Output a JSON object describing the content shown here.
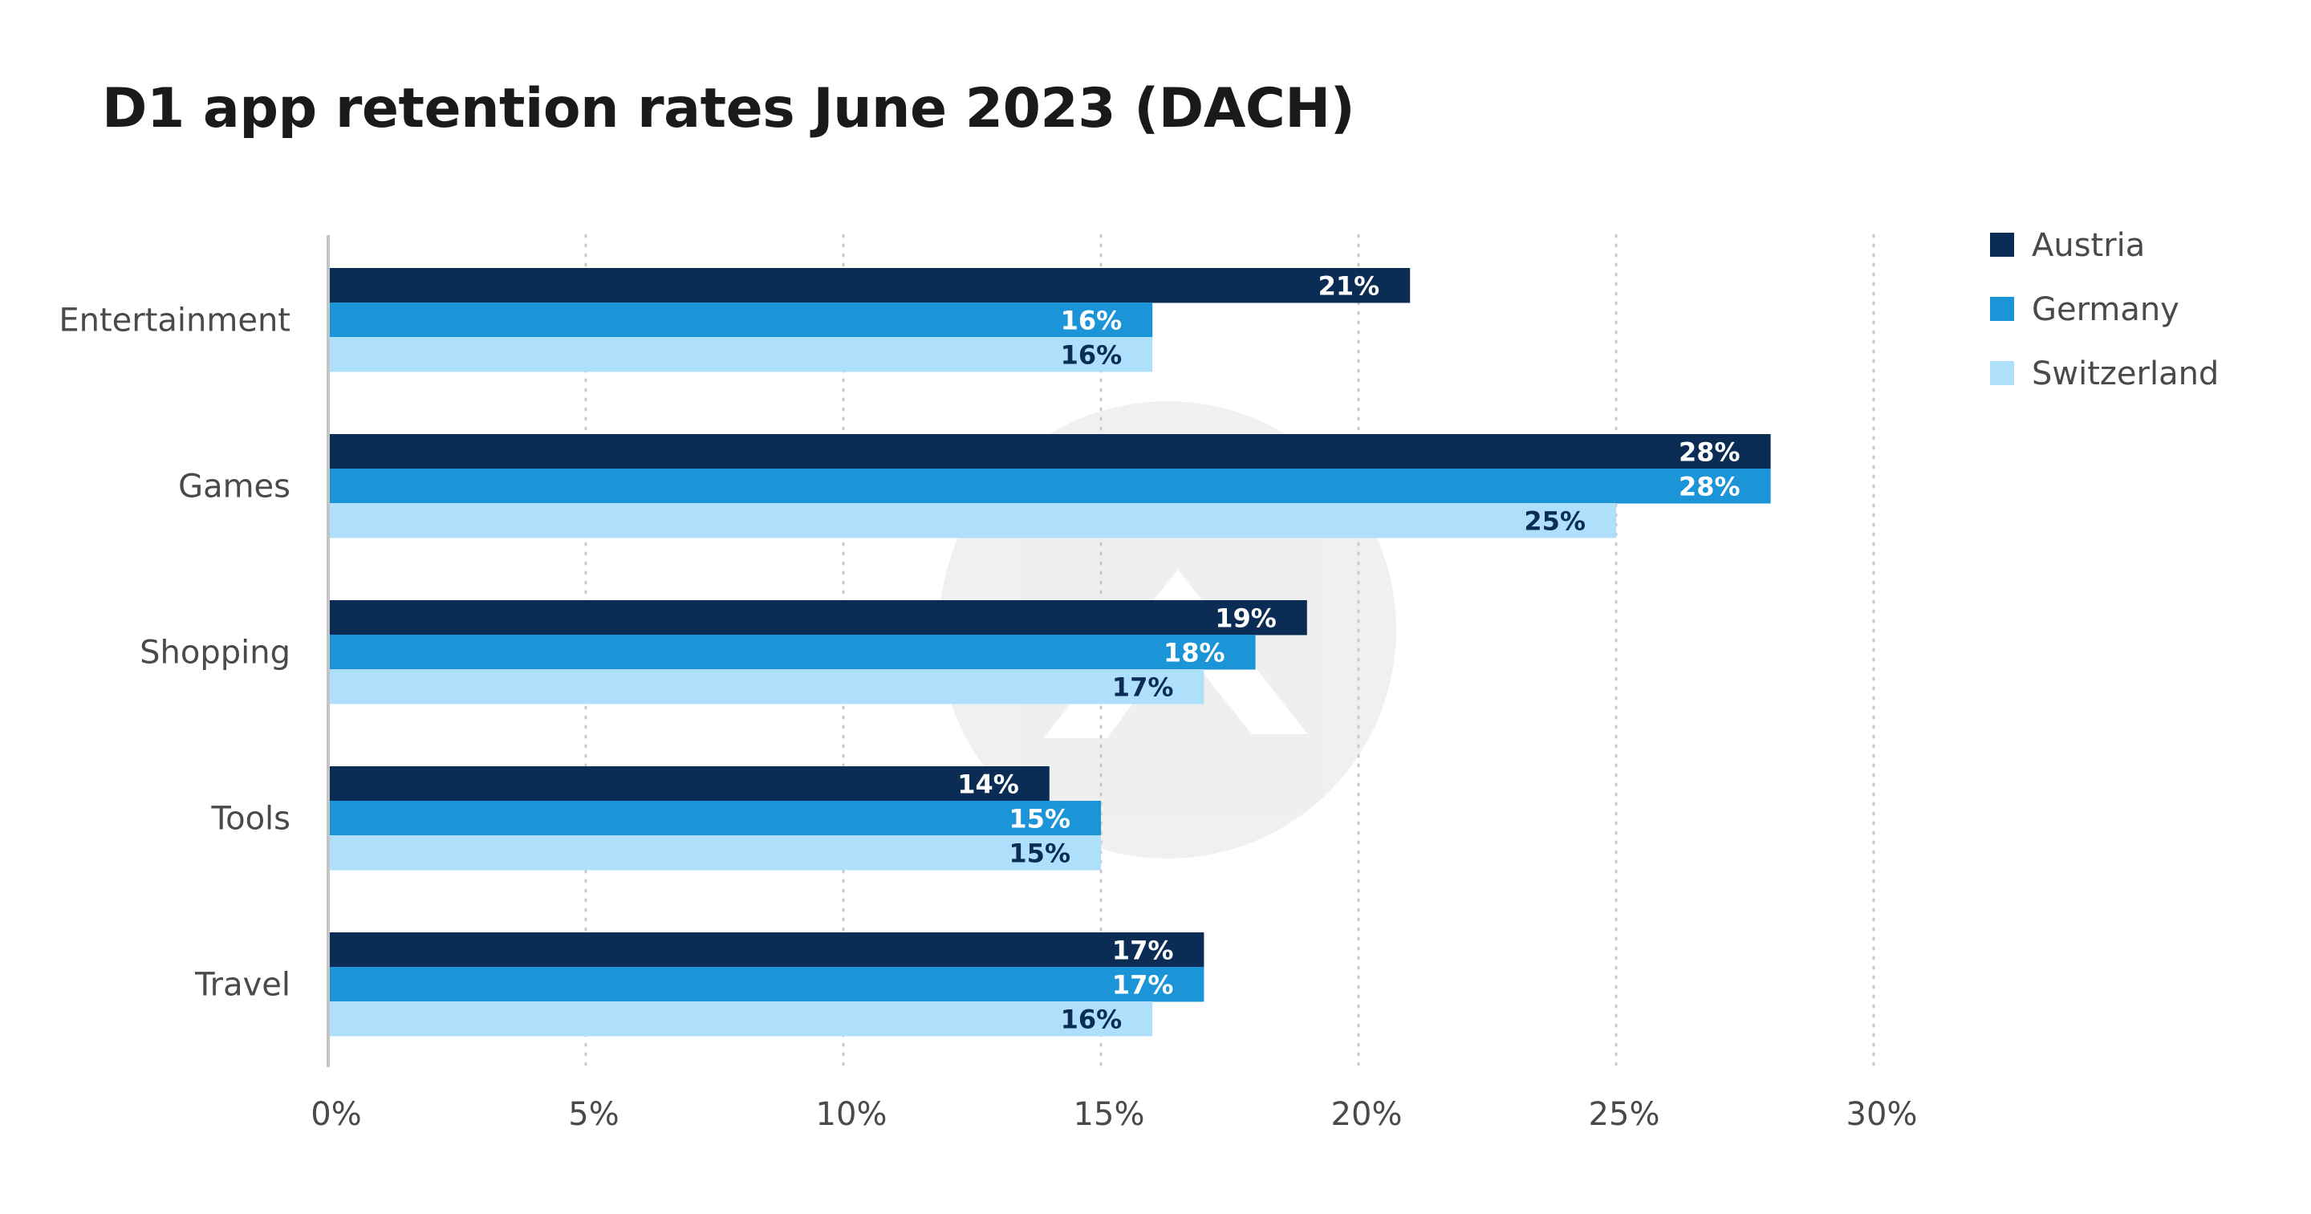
{
  "chart_data": {
    "type": "bar",
    "orientation": "horizontal",
    "title": "D1 app retention rates June 2023 (DACH)",
    "xlabel": "",
    "ylabel": "",
    "categories": [
      "Entertainment",
      "Games",
      "Shopping",
      "Tools",
      "Travel"
    ],
    "series": [
      {
        "name": "Austria",
        "color": "#0b2d55",
        "label_color": "#ffffff",
        "values": [
          21,
          28,
          19,
          14,
          17
        ]
      },
      {
        "name": "Germany",
        "color": "#1b94d8",
        "label_color": "#ffffff",
        "values": [
          16,
          28,
          18,
          15,
          17
        ]
      },
      {
        "name": "Switzerland",
        "color": "#aee0fb",
        "label_color": "#0b2d55",
        "values": [
          16,
          25,
          17,
          15,
          16
        ]
      }
    ],
    "value_suffix": "%",
    "xlim": [
      0,
      30
    ],
    "xticks": [
      "0%",
      "5%",
      "10%",
      "15%",
      "20%",
      "25%",
      "30%"
    ],
    "grid": "vertical dotted",
    "legend_position": "top-right"
  }
}
